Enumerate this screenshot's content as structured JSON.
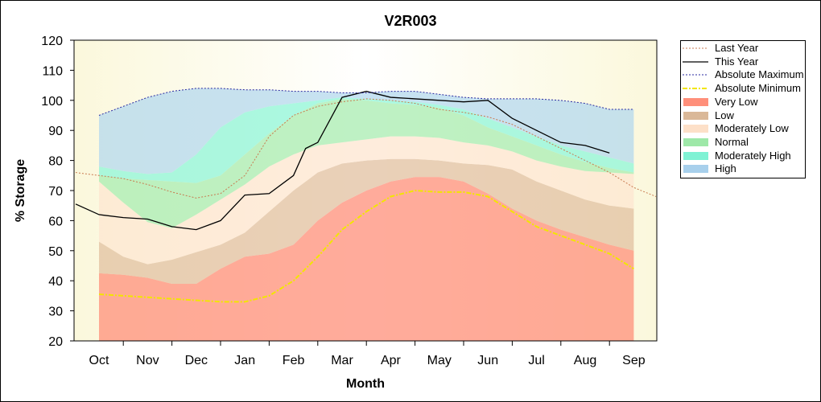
{
  "chart_data": {
    "type": "area",
    "title": "V2R003",
    "xlabel": "Month",
    "ylabel": "% Storage",
    "ylim": [
      20,
      120
    ],
    "yticks": [
      20,
      30,
      40,
      50,
      60,
      70,
      80,
      90,
      100,
      110,
      120
    ],
    "months": [
      "Oct",
      "Nov",
      "Dec",
      "Jan",
      "Feb",
      "Mar",
      "Apr",
      "May",
      "Jun",
      "Jul",
      "Aug",
      "Sep"
    ],
    "x": [
      1,
      2,
      3,
      4,
      5,
      6,
      7,
      8,
      9,
      10,
      11,
      12,
      13,
      14,
      15,
      16,
      17,
      18,
      19,
      20,
      21,
      22,
      23
    ],
    "x_note_values_are_half_month_steps": "",
    "bands": [
      {
        "name": "Very Low",
        "color": "#ff8f7a",
        "lower": [
          20,
          20,
          20,
          20,
          20,
          20,
          20,
          20,
          20,
          20,
          20,
          20,
          20,
          20,
          20,
          20,
          20,
          20,
          20,
          20,
          20,
          20,
          20
        ],
        "upper": [
          42.5,
          42,
          41,
          39,
          39,
          44,
          48,
          49,
          52,
          60,
          66,
          70,
          73,
          74.5,
          74.5,
          73,
          69,
          64,
          60,
          57,
          54.5,
          52,
          50
        ]
      },
      {
        "name": "Low",
        "color": "#e2c0a0",
        "lower": [
          42.5,
          42,
          41,
          39,
          39,
          44,
          48,
          49,
          52,
          60,
          66,
          70,
          73,
          74.5,
          74.5,
          73,
          69,
          64,
          60,
          57,
          54.5,
          52,
          50
        ],
        "upper": [
          53,
          48,
          45.5,
          47,
          49.5,
          52,
          56,
          63,
          70,
          76,
          79,
          80,
          80.5,
          80.5,
          80,
          79,
          78.5,
          77,
          73,
          70,
          67,
          65,
          64
        ]
      },
      {
        "name": "Moderately Low",
        "color": "#fde5d0",
        "lower": [
          53,
          48,
          45.5,
          47,
          49.5,
          52,
          56,
          63,
          70,
          76,
          79,
          80,
          80.5,
          80.5,
          80,
          79,
          78.5,
          77,
          73,
          70,
          67,
          65,
          64
        ],
        "upper": [
          73,
          66,
          59.5,
          57.5,
          62,
          67,
          72,
          78,
          82,
          85,
          86,
          87,
          88,
          88,
          87.5,
          86,
          85,
          83,
          80,
          78,
          76.5,
          76,
          75.5
        ]
      },
      {
        "name": "Normal",
        "color": "#a8ecb0",
        "lower": [
          73,
          66,
          59.5,
          57.5,
          62,
          67,
          72,
          78,
          82,
          85,
          86,
          87,
          88,
          88,
          87.5,
          86,
          85,
          83,
          80,
          78,
          76.5,
          76,
          75.5
        ],
        "upper": [
          75,
          74,
          73.5,
          73,
          72.5,
          75,
          82,
          89,
          95,
          99,
          100.5,
          100,
          99,
          98.5,
          97.5,
          95,
          91,
          88,
          85,
          82,
          79.5,
          77.5,
          76
        ]
      },
      {
        "name": "Moderately High",
        "color": "#8ff5d8",
        "lower": [
          75,
          74,
          73.5,
          73,
          72.5,
          75,
          82,
          89,
          95,
          99,
          100.5,
          100,
          99,
          98.5,
          97.5,
          95,
          91,
          88,
          85,
          82,
          79.5,
          77.5,
          76
        ],
        "upper": [
          78,
          76.5,
          75.5,
          76,
          82,
          91,
          96,
          98,
          99,
          100,
          101,
          100.5,
          100,
          99.5,
          98.5,
          97,
          94,
          91,
          88,
          85,
          83,
          81,
          79
        ]
      },
      {
        "name": "High",
        "color": "#b4d8ee",
        "lower": [
          78,
          76.5,
          75.5,
          76,
          82,
          91,
          96,
          98,
          99,
          100,
          101,
          100.5,
          100,
          99.5,
          98.5,
          97,
          94,
          91,
          88,
          85,
          83,
          81,
          79
        ],
        "upper": [
          95,
          98,
          101,
          103,
          104,
          104,
          103.5,
          103.5,
          103,
          103,
          102.5,
          102.5,
          103,
          103,
          102,
          101,
          100.5,
          100.5,
          100.5,
          100,
          99,
          97,
          97
        ]
      }
    ],
    "series": [
      {
        "name": "Last Year",
        "color": "#c87a50",
        "style": "dotted",
        "x": [
          0,
          1,
          2,
          3,
          4,
          5,
          6,
          7,
          8,
          9,
          10,
          11,
          12,
          13,
          14,
          15,
          16,
          17,
          18,
          19,
          20,
          21,
          22,
          23,
          24
        ],
        "values": [
          76,
          75,
          74,
          72,
          69.5,
          67.5,
          69,
          75,
          88,
          95,
          98,
          99.5,
          100.5,
          100,
          99,
          97,
          96,
          94.5,
          92,
          88,
          84,
          80,
          76,
          71,
          68
        ]
      },
      {
        "name": "This Year",
        "color": "#000000",
        "style": "solid",
        "x": [
          0,
          1,
          2,
          3,
          4,
          5,
          6,
          7,
          8,
          9,
          9.5,
          10,
          11,
          12,
          13,
          14,
          15,
          16,
          17,
          18,
          19,
          20,
          21,
          22
        ],
        "values": [
          65.5,
          62,
          61,
          60.5,
          58,
          57,
          60,
          68.5,
          69,
          75,
          84,
          86,
          101,
          103,
          101,
          100.5,
          100,
          99.5,
          100,
          94,
          90,
          86,
          85,
          82.5
        ]
      },
      {
        "name": "Absolute Maximum",
        "color": "#2a2aa0",
        "style": "dotted",
        "x": [
          1,
          2,
          3,
          4,
          5,
          6,
          7,
          8,
          9,
          10,
          11,
          12,
          13,
          14,
          15,
          16,
          17,
          18,
          19,
          20,
          21,
          22,
          23
        ],
        "values": [
          95,
          98,
          101,
          103,
          104,
          104,
          103.5,
          103.5,
          103,
          103,
          102.5,
          102.5,
          103,
          103,
          102,
          101,
          100.5,
          100.5,
          100.5,
          100,
          99,
          97,
          97
        ]
      },
      {
        "name": "Absolute Minimum",
        "color": "#f2e600",
        "style": "dashdot",
        "x": [
          1,
          2,
          3,
          4,
          5,
          6,
          7,
          8,
          9,
          10,
          11,
          12,
          13,
          14,
          15,
          16,
          17,
          18,
          19,
          20,
          21,
          22,
          23
        ],
        "values": [
          35.5,
          35,
          34.5,
          34,
          33.5,
          33,
          33,
          35,
          40,
          48,
          57,
          63,
          68,
          70,
          69.5,
          69.5,
          68,
          63,
          58,
          55,
          52,
          49,
          44
        ]
      }
    ],
    "legend": [
      {
        "label": "Last Year",
        "kind": "line",
        "color": "#c87a50",
        "dash": "2,2",
        "width": 1
      },
      {
        "label": "This Year",
        "kind": "line",
        "color": "#000000",
        "dash": "",
        "width": 1.2
      },
      {
        "label": "Absolute Maximum",
        "kind": "line",
        "color": "#2a2aa0",
        "dash": "2,2",
        "width": 1
      },
      {
        "label": "Absolute Minimum",
        "kind": "line",
        "color": "#f2e600",
        "dash": "6,2,2,2",
        "width": 2
      },
      {
        "label": "Very Low",
        "kind": "swatch",
        "color": "#ff8f7a"
      },
      {
        "label": "Low",
        "kind": "swatch",
        "color": "#dab898"
      },
      {
        "label": "Moderately Low",
        "kind": "swatch",
        "color": "#fde0c8"
      },
      {
        "label": "Normal",
        "kind": "swatch",
        "color": "#9ee8a8"
      },
      {
        "label": "Moderately High",
        "kind": "swatch",
        "color": "#7ff2d4"
      },
      {
        "label": "High",
        "kind": "swatch",
        "color": "#a8d0ec"
      }
    ],
    "grid": false,
    "legend_position": "right"
  }
}
